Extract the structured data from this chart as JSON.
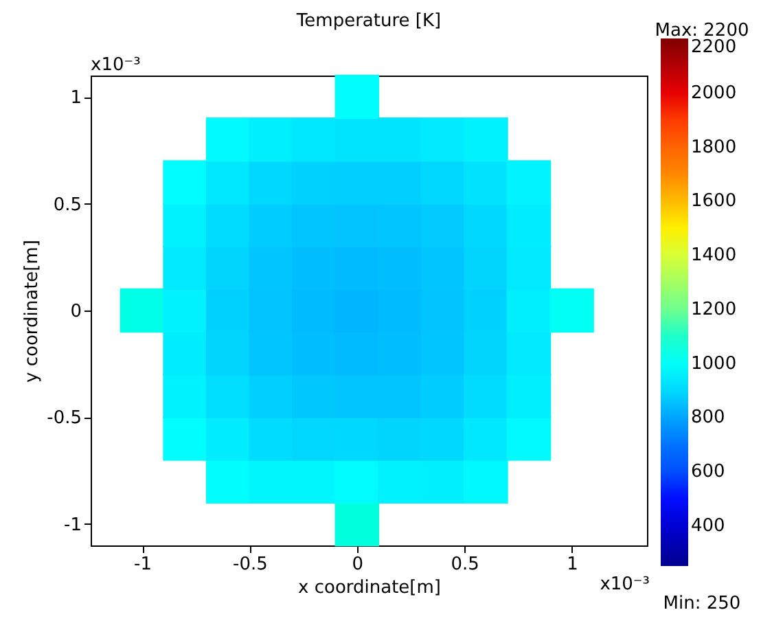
{
  "chart_data": {
    "type": "scatter",
    "title": "Temperature [K]",
    "xlabel": "x coordinate[m]",
    "ylabel": "y coordinate[m]",
    "x": [
      -1,
      -0.8,
      -0.8,
      -0.8,
      -0.8,
      -0.8,
      -0.8,
      -0.8,
      -0.6,
      -0.6,
      -0.6,
      -0.6,
      -0.6,
      -0.6,
      -0.6,
      -0.6,
      -0.6,
      -0.4,
      -0.4,
      -0.4,
      -0.4,
      -0.4,
      -0.4,
      -0.4,
      -0.4,
      -0.4,
      -0.2,
      -0.2,
      -0.2,
      -0.2,
      -0.2,
      -0.2,
      -0.2,
      -0.2,
      -0.2,
      0,
      0,
      0,
      0,
      0,
      0,
      0,
      0,
      0,
      0,
      0,
      0.2,
      0.2,
      0.2,
      0.2,
      0.2,
      0.2,
      0.2,
      0.2,
      0.2,
      0.4,
      0.4,
      0.4,
      0.4,
      0.4,
      0.4,
      0.4,
      0.4,
      0.4,
      0.6,
      0.6,
      0.6,
      0.6,
      0.6,
      0.6,
      0.6,
      0.6,
      0.6,
      0.8,
      0.8,
      0.8,
      0.8,
      0.8,
      0.8,
      0.8,
      1
    ],
    "values": [
      0,
      -0.6,
      -0.4,
      -0.2,
      0,
      0.2,
      0.4,
      0.6,
      -0.8,
      -0.6,
      -0.4,
      -0.2,
      0,
      0.2,
      0.4,
      0.6,
      0.8,
      -0.8,
      -0.6,
      -0.4,
      -0.2,
      0,
      0.2,
      0.4,
      0.6,
      0.8,
      -0.8,
      -0.6,
      -0.4,
      -0.2,
      0,
      0.2,
      0.4,
      0.6,
      0.8,
      -1,
      -0.8,
      -0.6,
      -0.4,
      -0.2,
      0,
      0.2,
      0.4,
      0.6,
      0.8,
      1,
      -0.8,
      -0.6,
      -0.4,
      -0.2,
      0,
      0.2,
      0.4,
      0.6,
      0.8,
      -0.8,
      -0.6,
      -0.4,
      -0.2,
      0,
      0.2,
      0.4,
      0.6,
      0.8,
      -0.8,
      -0.6,
      -0.4,
      -0.2,
      0,
      0.2,
      0.4,
      0.6,
      0.8,
      -0.6,
      -0.4,
      -0.2,
      0,
      0.2,
      0.4,
      0.6,
      0
    ],
    "cvalues": [
      1040,
      980,
      950,
      940,
      950,
      935,
      950,
      975,
      980,
      940,
      910,
      890,
      885,
      890,
      905,
      930,
      970,
      960,
      905,
      880,
      860,
      855,
      860,
      875,
      900,
      945,
      960,
      895,
      865,
      845,
      840,
      845,
      860,
      885,
      930,
      1060,
      975,
      900,
      860,
      840,
      830,
      840,
      855,
      880,
      925,
      990,
      950,
      890,
      860,
      845,
      840,
      845,
      860,
      880,
      925,
      945,
      900,
      875,
      860,
      855,
      860,
      870,
      895,
      935,
      965,
      930,
      905,
      890,
      885,
      890,
      900,
      920,
      950,
      970,
      945,
      935,
      945,
      935,
      940,
      955,
      1010
    ],
    "marker": "square",
    "xlim": [
      -1.24,
      1.35
    ],
    "ylim": [
      -1.1,
      1.1
    ],
    "xticks": [
      -1,
      -0.5,
      0,
      0.5,
      1
    ],
    "yticks": [
      -1,
      -0.5,
      0,
      0.5,
      1
    ],
    "clim": [
      250,
      2200
    ],
    "cticks": [
      400,
      600,
      800,
      1000,
      1200,
      1400,
      1600,
      1800,
      2000,
      2200
    ],
    "grid": false,
    "annotations": [
      "x10⁻³",
      "x10⁻³",
      "Max: 2200",
      "Min: 250"
    ]
  }
}
